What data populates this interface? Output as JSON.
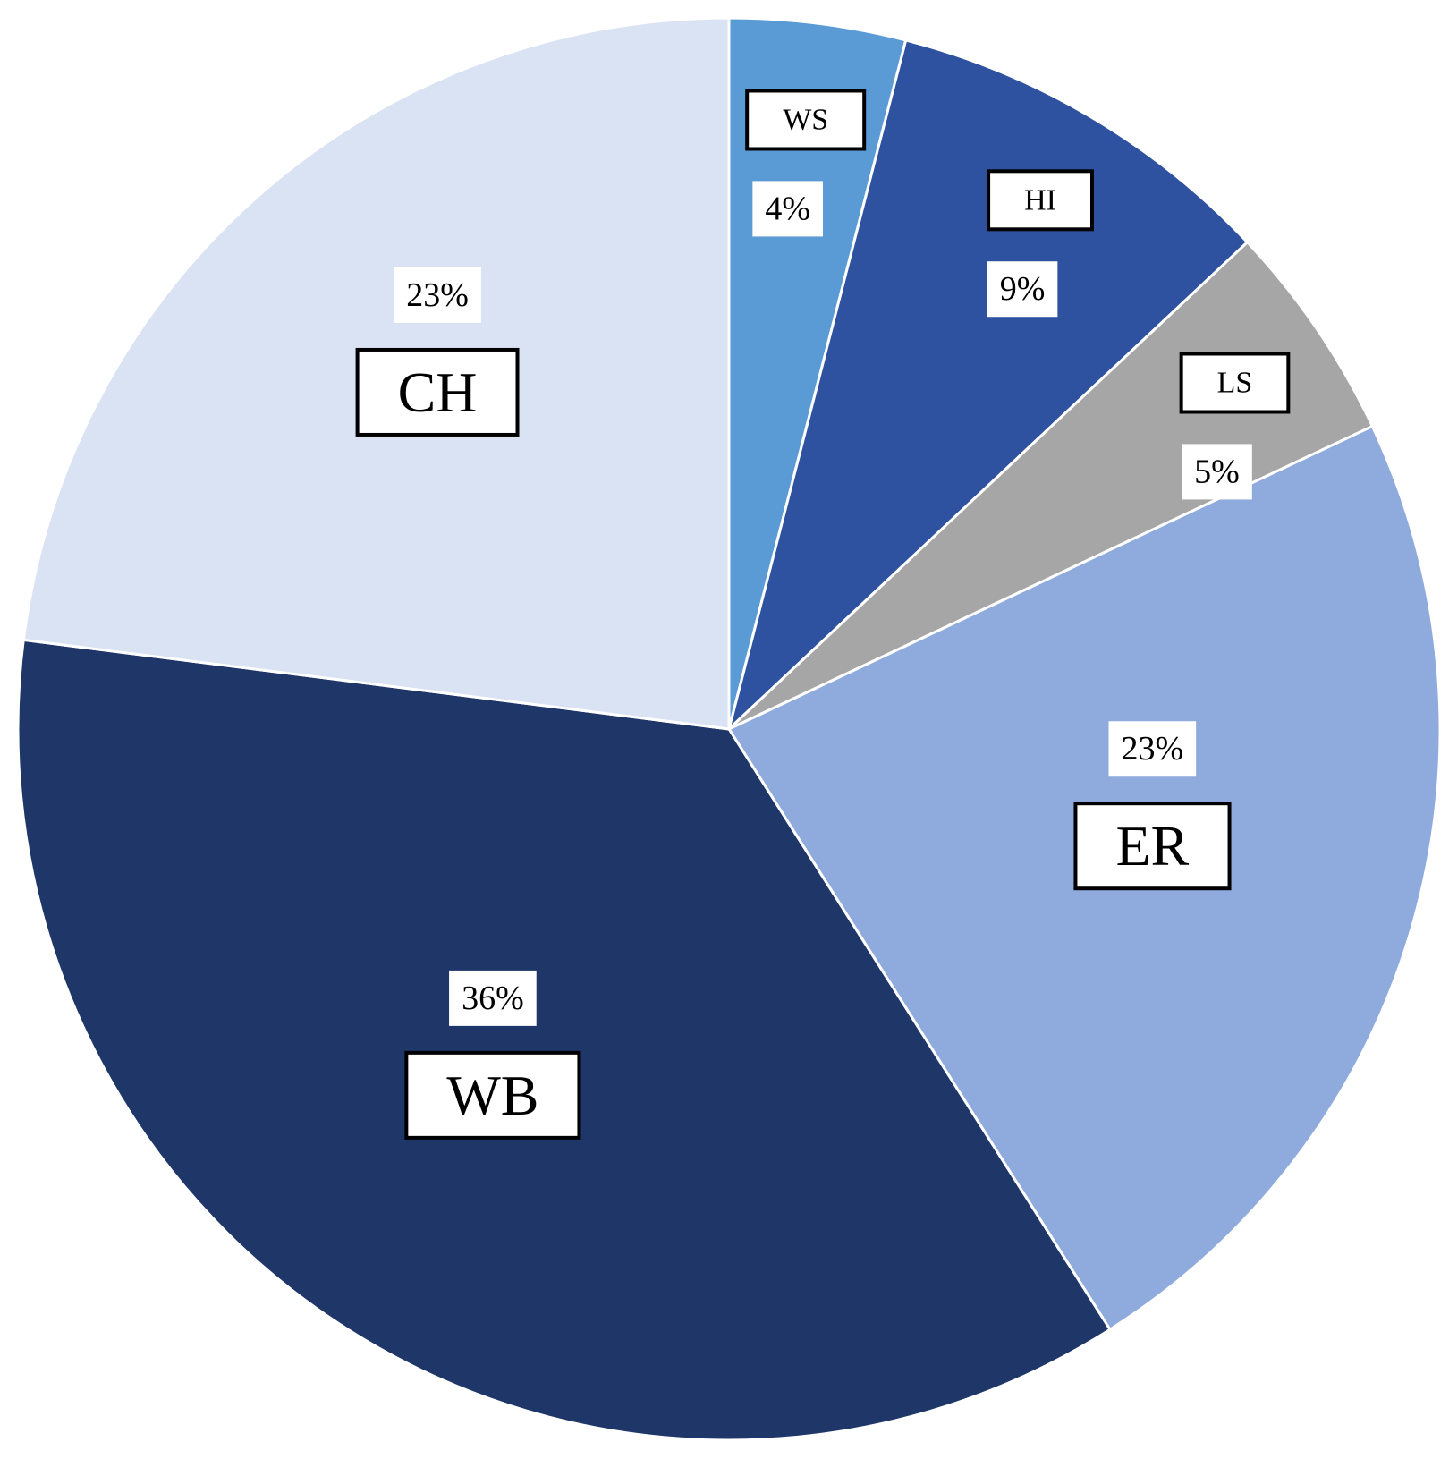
{
  "chart_data": {
    "type": "pie",
    "categories": [
      "WS",
      "HI",
      "LS",
      "ER",
      "WB",
      "CH"
    ],
    "values": [
      4,
      9,
      5,
      23,
      36,
      23
    ],
    "value_labels": [
      "4%",
      "9%",
      "5%",
      "23%",
      "36%",
      "23%"
    ],
    "colors": [
      "#5b9bd5",
      "#2f52a0",
      "#a6a6a6",
      "#8faadc",
      "#1f3668",
      "#dae3f3"
    ]
  }
}
